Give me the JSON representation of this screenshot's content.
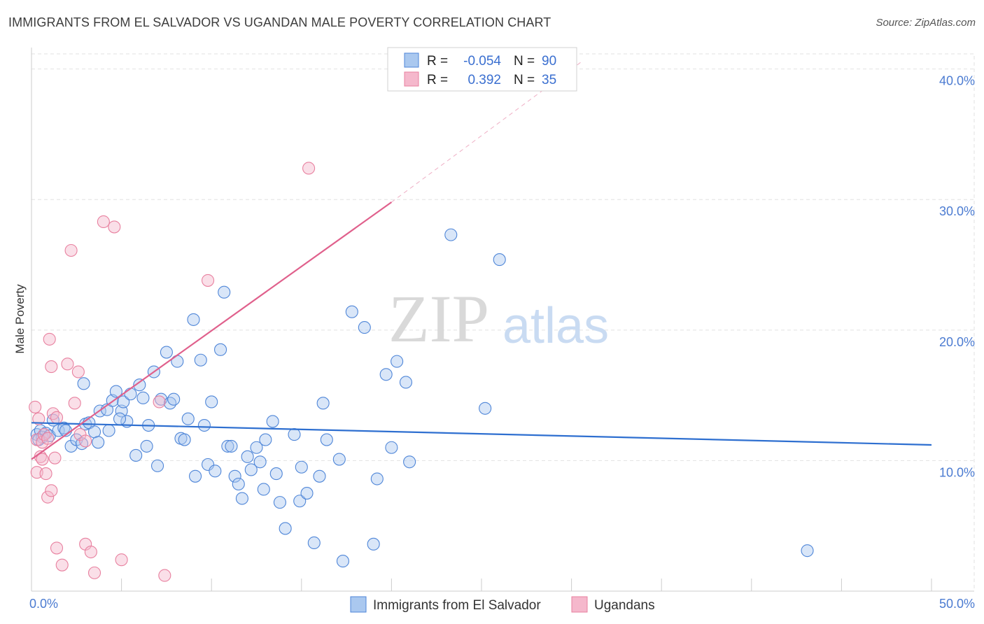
{
  "header": {
    "title": "IMMIGRANTS FROM EL SALVADOR VS UGANDAN MALE POVERTY CORRELATION CHART",
    "source": "Source: ZipAtlas.com"
  },
  "watermark": {
    "zip": "ZIP",
    "atlas": "atlas"
  },
  "colors": {
    "blue_fill": "#aac8ef",
    "blue_stroke": "#4f86d8",
    "blue_line": "#2e6fd0",
    "pink_fill": "#f5b8cc",
    "pink_stroke": "#e8809f",
    "pink_line": "#e0608c",
    "grid": "#e2e2e2",
    "tick_text": "#4b7bd1"
  },
  "legend": {
    "rows": [
      {
        "r_label": "R =",
        "r_value": "-0.054",
        "n_label": "N =",
        "n_value": "90"
      },
      {
        "r_label": "R =",
        "r_value": "0.392",
        "n_label": "N =",
        "n_value": "35"
      }
    ]
  },
  "chart_data": {
    "type": "scatter",
    "ylabel": "Male Poverty",
    "xlabel": "",
    "xlim": [
      0,
      50
    ],
    "ylim": [
      0,
      41
    ],
    "x_tick_labels": [
      {
        "value": 0,
        "label": "0.0%"
      },
      {
        "value": 50,
        "label": "50.0%"
      }
    ],
    "y_tick_labels": [
      {
        "value": 10,
        "label": "10.0%"
      },
      {
        "value": 20,
        "label": "20.0%"
      },
      {
        "value": 30,
        "label": "30.0%"
      },
      {
        "value": 40,
        "label": "40.0%"
      }
    ],
    "grid": true,
    "legend_position": "top-center",
    "series": [
      {
        "name": "Immigrants from El Salvador",
        "color_key": "blue",
        "trend": {
          "x": [
            0,
            50
          ],
          "y": [
            12.9,
            11.2
          ]
        },
        "points": [
          [
            0.3,
            12.0
          ],
          [
            0.5,
            12.3
          ],
          [
            0.6,
            11.8
          ],
          [
            0.8,
            12.1
          ],
          [
            1.0,
            11.9
          ],
          [
            1.2,
            13.1
          ],
          [
            1.5,
            12.3
          ],
          [
            1.8,
            12.5
          ],
          [
            2.2,
            11.1
          ],
          [
            2.5,
            11.6
          ],
          [
            2.8,
            11.3
          ],
          [
            3.0,
            12.8
          ],
          [
            3.2,
            12.9
          ],
          [
            3.5,
            12.2
          ],
          [
            2.9,
            15.9
          ],
          [
            3.8,
            13.8
          ],
          [
            4.2,
            13.9
          ],
          [
            4.3,
            12.3
          ],
          [
            4.5,
            14.6
          ],
          [
            4.7,
            15.3
          ],
          [
            5.0,
            13.8
          ],
          [
            5.1,
            14.5
          ],
          [
            5.3,
            13.0
          ],
          [
            5.5,
            15.1
          ],
          [
            5.8,
            10.4
          ],
          [
            6.0,
            15.8
          ],
          [
            6.2,
            14.8
          ],
          [
            6.4,
            11.1
          ],
          [
            6.5,
            12.7
          ],
          [
            6.8,
            16.8
          ],
          [
            7.0,
            9.6
          ],
          [
            7.2,
            14.7
          ],
          [
            7.5,
            18.3
          ],
          [
            7.7,
            14.4
          ],
          [
            7.9,
            14.7
          ],
          [
            8.1,
            17.6
          ],
          [
            8.3,
            11.7
          ],
          [
            8.5,
            11.6
          ],
          [
            8.7,
            13.2
          ],
          [
            9.0,
            20.8
          ],
          [
            9.1,
            8.8
          ],
          [
            9.4,
            17.7
          ],
          [
            9.6,
            12.7
          ],
          [
            9.8,
            9.7
          ],
          [
            10.0,
            14.5
          ],
          [
            10.2,
            9.2
          ],
          [
            10.5,
            18.5
          ],
          [
            10.7,
            22.9
          ],
          [
            10.9,
            11.1
          ],
          [
            11.1,
            11.1
          ],
          [
            11.3,
            8.8
          ],
          [
            11.5,
            8.2
          ],
          [
            11.7,
            7.1
          ],
          [
            12.0,
            10.3
          ],
          [
            12.2,
            9.3
          ],
          [
            12.5,
            11.0
          ],
          [
            12.7,
            9.9
          ],
          [
            13.0,
            11.6
          ],
          [
            12.9,
            7.8
          ],
          [
            13.4,
            13.0
          ],
          [
            13.6,
            9.0
          ],
          [
            13.8,
            6.8
          ],
          [
            14.1,
            4.8
          ],
          [
            14.6,
            12.0
          ],
          [
            14.9,
            6.9
          ],
          [
            15.0,
            9.5
          ],
          [
            15.3,
            7.5
          ],
          [
            15.7,
            3.7
          ],
          [
            16.0,
            8.8
          ],
          [
            16.2,
            14.4
          ],
          [
            16.4,
            11.6
          ],
          [
            17.1,
            10.1
          ],
          [
            17.3,
            2.3
          ],
          [
            17.8,
            21.4
          ],
          [
            18.5,
            20.2
          ],
          [
            19.0,
            3.6
          ],
          [
            19.2,
            8.6
          ],
          [
            19.7,
            16.6
          ],
          [
            20.0,
            11.0
          ],
          [
            20.3,
            17.6
          ],
          [
            20.8,
            16.0
          ],
          [
            21.0,
            9.9
          ],
          [
            23.3,
            27.3
          ],
          [
            25.2,
            14.0
          ],
          [
            26.0,
            25.4
          ],
          [
            43.1,
            3.1
          ],
          [
            0.4,
            11.6
          ],
          [
            1.9,
            12.3
          ],
          [
            3.7,
            11.4
          ],
          [
            4.9,
            13.2
          ]
        ]
      },
      {
        "name": "Ugandans",
        "color_key": "pink",
        "trend": {
          "x": [
            0,
            20
          ],
          "y": [
            10.1,
            29.8
          ]
        },
        "trend_extension": {
          "x": [
            20,
            30.5
          ],
          "y": [
            29.8,
            40.5
          ]
        },
        "points": [
          [
            0.2,
            14.1
          ],
          [
            0.3,
            11.6
          ],
          [
            0.3,
            9.1
          ],
          [
            0.4,
            13.2
          ],
          [
            0.5,
            10.3
          ],
          [
            0.6,
            11.4
          ],
          [
            0.6,
            10.1
          ],
          [
            0.7,
            12.0
          ],
          [
            0.8,
            9.0
          ],
          [
            0.9,
            11.7
          ],
          [
            0.9,
            7.2
          ],
          [
            1.0,
            19.3
          ],
          [
            1.1,
            17.2
          ],
          [
            1.1,
            7.7
          ],
          [
            1.2,
            13.6
          ],
          [
            1.3,
            10.2
          ],
          [
            1.4,
            13.3
          ],
          [
            1.4,
            3.3
          ],
          [
            1.7,
            2.0
          ],
          [
            2.0,
            17.4
          ],
          [
            2.2,
            26.1
          ],
          [
            2.4,
            14.4
          ],
          [
            2.6,
            16.8
          ],
          [
            2.7,
            12.0
          ],
          [
            3.0,
            11.5
          ],
          [
            3.0,
            3.6
          ],
          [
            3.3,
            3.0
          ],
          [
            3.5,
            1.4
          ],
          [
            4.0,
            28.3
          ],
          [
            4.6,
            27.9
          ],
          [
            5.0,
            2.4
          ],
          [
            7.1,
            14.5
          ],
          [
            7.4,
            1.2
          ],
          [
            9.8,
            23.8
          ],
          [
            15.4,
            32.4
          ]
        ]
      }
    ]
  }
}
